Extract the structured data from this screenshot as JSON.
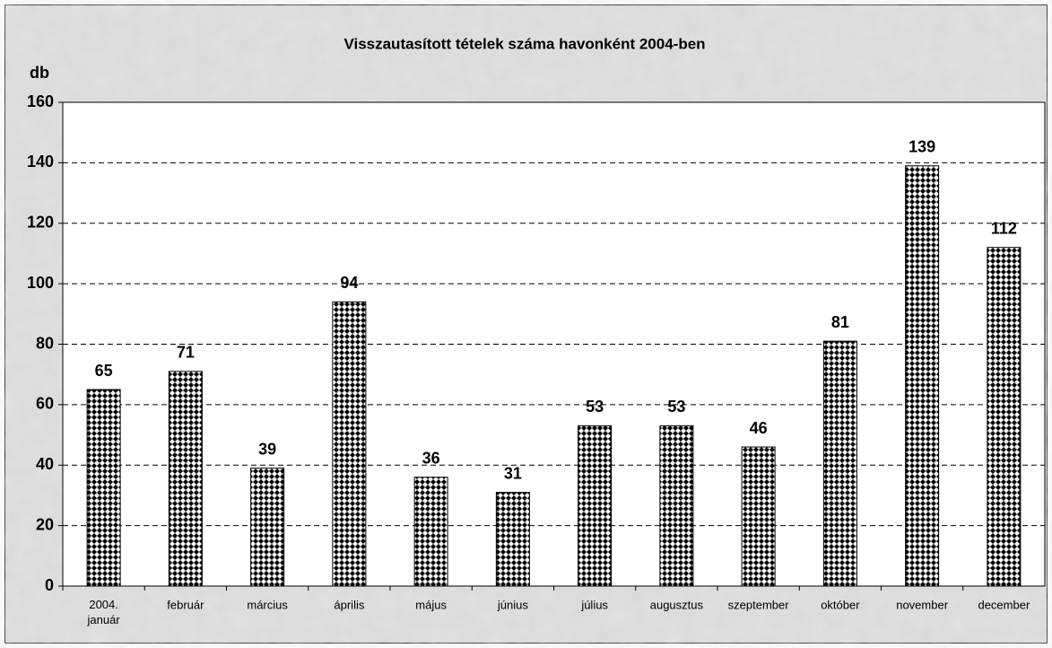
{
  "chart_data": {
    "type": "bar",
    "title": "Visszautasított tételek száma havonként 2004-ben",
    "y_label": "db",
    "categories": [
      "2004.\njanuár",
      "február",
      "március",
      "április",
      "május",
      "június",
      "július",
      "augusztus",
      "szeptember",
      "október",
      "november",
      "december"
    ],
    "values": [
      65,
      71,
      39,
      94,
      36,
      31,
      53,
      53,
      46,
      81,
      139,
      112
    ],
    "color": "#000000",
    "ylim": [
      0,
      160
    ],
    "yticks": [
      0,
      20,
      40,
      60,
      80,
      100,
      120,
      140,
      160
    ],
    "grid": true
  }
}
